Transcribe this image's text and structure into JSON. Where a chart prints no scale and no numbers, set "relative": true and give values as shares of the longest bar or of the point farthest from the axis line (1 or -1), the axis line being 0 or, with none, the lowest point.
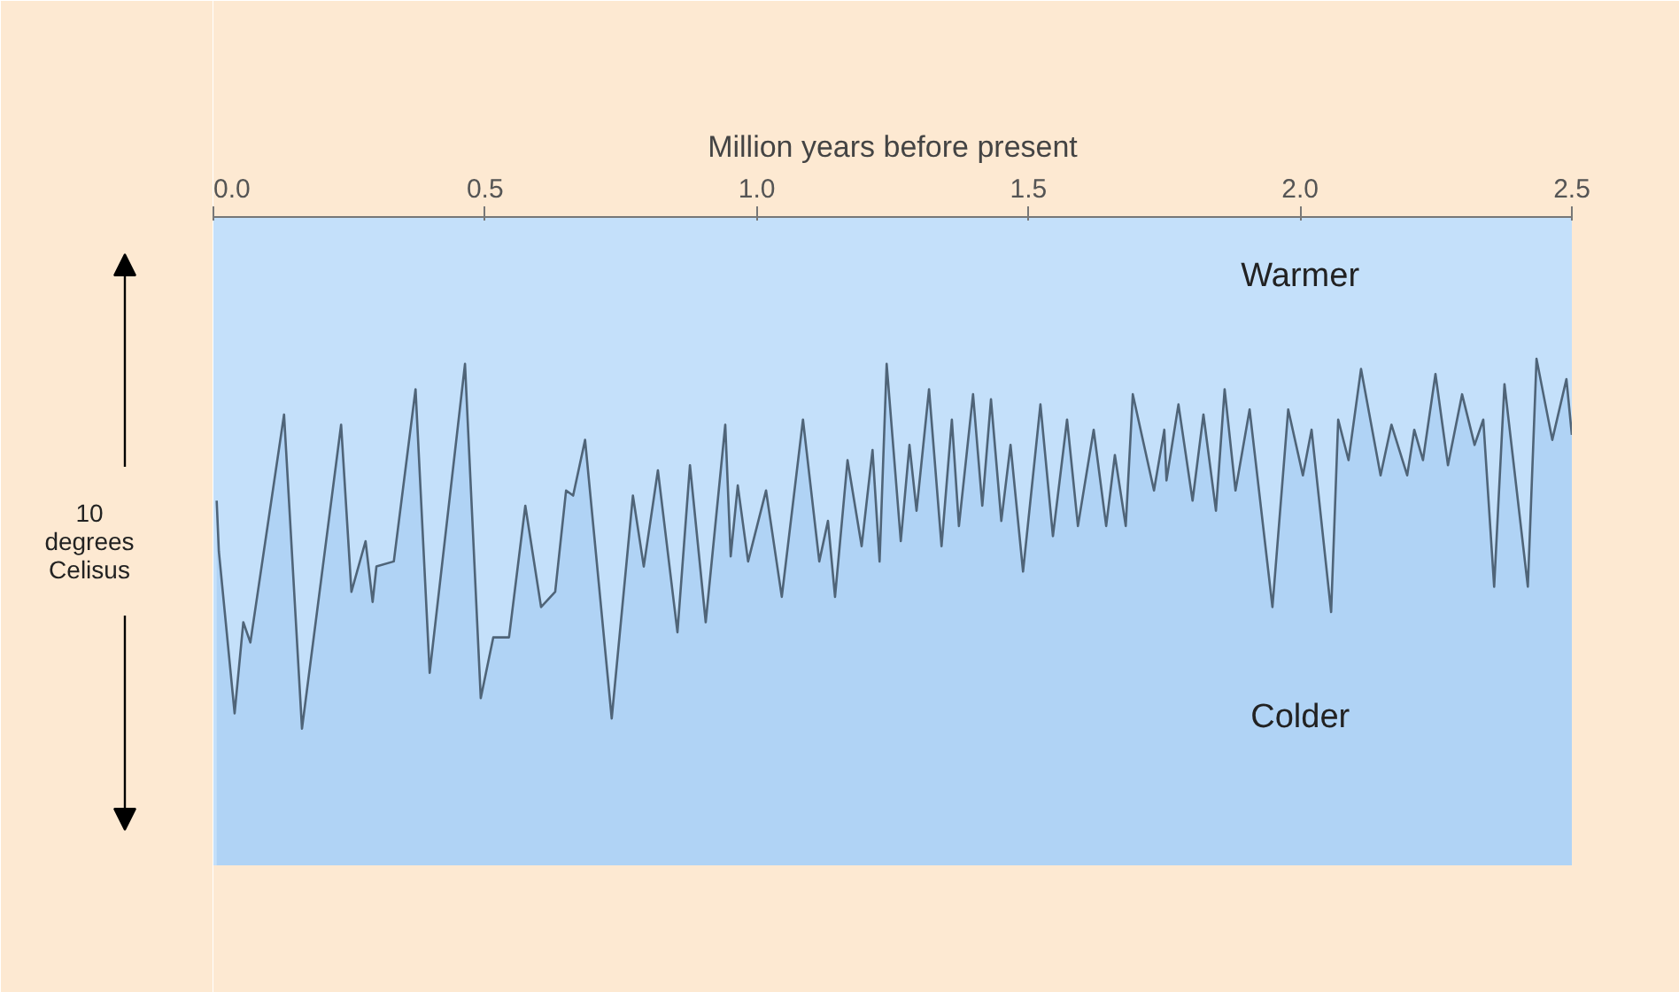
{
  "chart_data": {
    "type": "area",
    "relative": true,
    "xlabel": "Million years before present",
    "xlim": [
      0,
      2.5
    ],
    "xticks": [
      {
        "value": 0,
        "label": "0.0"
      },
      {
        "value": 0.5,
        "label": "0.5"
      },
      {
        "value": 1,
        "label": "1.0"
      },
      {
        "value": 1.5,
        "label": "1.5"
      },
      {
        "value": 2,
        "label": "2.0"
      },
      {
        "value": 2.5,
        "label": "2.5"
      }
    ],
    "annotations": [
      "Warmer",
      "Colder",
      "10 degrees Celisus"
    ],
    "series": [
      {
        "color": "#b0d3f5",
        "x": [
          0.006,
          0.01,
          0.039,
          0.055,
          0.068,
          0.13,
          0.163,
          0.235,
          0.254,
          0.28,
          0.293,
          0.3,
          0.332,
          0.372,
          0.398,
          0.463,
          0.492,
          0.515,
          0.544,
          0.574,
          0.603,
          0.629,
          0.649,
          0.662,
          0.684,
          0.733,
          0.772,
          0.792,
          0.818,
          0.854,
          0.877,
          0.906,
          0.942,
          0.952,
          0.965,
          0.984,
          1.017,
          1.046,
          1.085,
          1.115,
          1.131,
          1.144,
          1.167,
          1.193,
          1.213,
          1.226,
          1.239,
          1.265,
          1.281,
          1.294,
          1.317,
          1.34,
          1.359,
          1.372,
          1.398,
          1.415,
          1.431,
          1.45,
          1.467,
          1.49,
          1.522,
          1.545,
          1.571,
          1.591,
          1.62,
          1.643,
          1.659,
          1.679,
          1.692,
          1.731,
          1.75,
          1.754,
          1.776,
          1.802,
          1.822,
          1.845,
          1.861,
          1.881,
          1.907,
          1.949,
          1.978,
          2.005,
          2.021,
          2.057,
          2.07,
          2.089,
          2.112,
          2.148,
          2.168,
          2.197,
          2.21,
          2.226,
          2.249,
          2.272,
          2.298,
          2.321,
          2.337,
          2.357,
          2.376,
          2.419,
          2.435,
          2.464,
          2.49,
          2.5
        ],
        "values": [
          0.72,
          0.62,
          0.3,
          0.48,
          0.44,
          0.89,
          0.27,
          0.87,
          0.54,
          0.64,
          0.52,
          0.59,
          0.6,
          0.94,
          0.38,
          0.99,
          0.33,
          0.45,
          0.45,
          0.71,
          0.51,
          0.54,
          0.74,
          0.73,
          0.84,
          0.29,
          0.73,
          0.59,
          0.78,
          0.46,
          0.79,
          0.48,
          0.87,
          0.61,
          0.75,
          0.6,
          0.74,
          0.53,
          0.88,
          0.6,
          0.68,
          0.53,
          0.8,
          0.63,
          0.82,
          0.6,
          0.99,
          0.64,
          0.83,
          0.7,
          0.94,
          0.63,
          0.88,
          0.67,
          0.93,
          0.71,
          0.92,
          0.68,
          0.83,
          0.58,
          0.91,
          0.65,
          0.88,
          0.67,
          0.86,
          0.67,
          0.81,
          0.67,
          0.93,
          0.74,
          0.86,
          0.76,
          0.91,
          0.72,
          0.89,
          0.7,
          0.94,
          0.74,
          0.9,
          0.51,
          0.9,
          0.77,
          0.86,
          0.5,
          0.88,
          0.8,
          0.98,
          0.77,
          0.87,
          0.77,
          0.86,
          0.8,
          0.97,
          0.79,
          0.93,
          0.83,
          0.88,
          0.55,
          0.95,
          0.55,
          1.0,
          0.84,
          0.96,
          0.85
        ]
      }
    ]
  }
}
